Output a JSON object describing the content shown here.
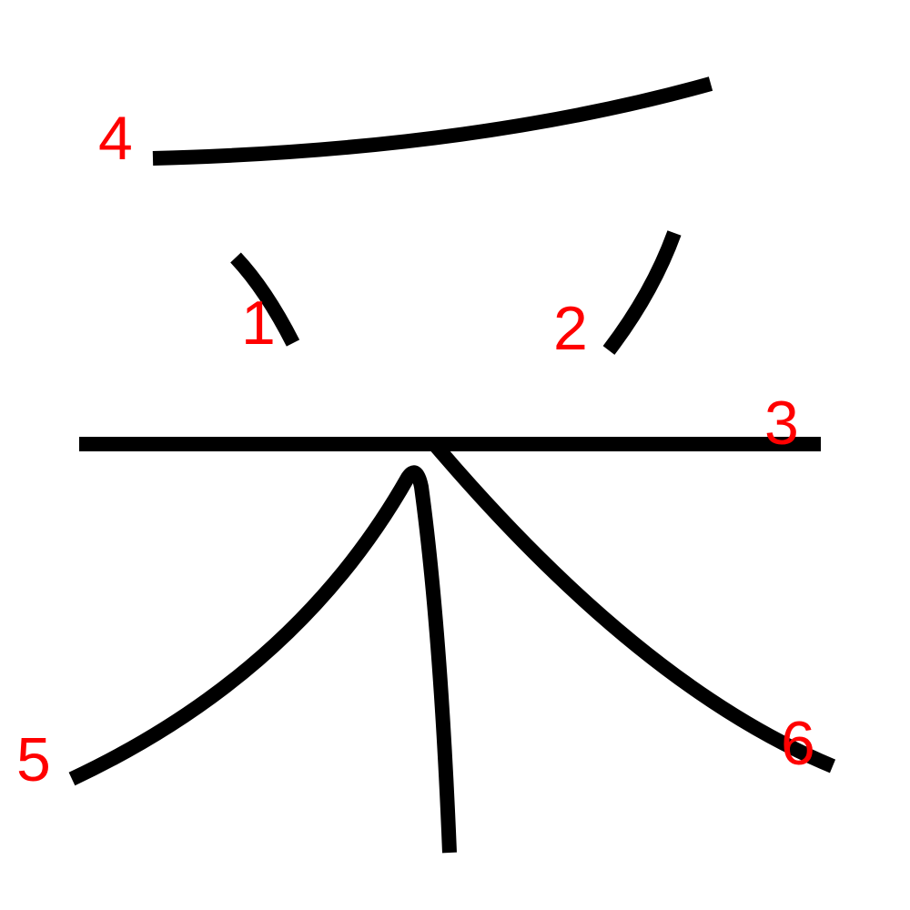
{
  "diagram": {
    "stroke_color": "#000000",
    "label_color": "#ff0000",
    "labels": [
      {
        "id": "1",
        "text": "1"
      },
      {
        "id": "2",
        "text": "2"
      },
      {
        "id": "3",
        "text": "3"
      },
      {
        "id": "4",
        "text": "4"
      },
      {
        "id": "5",
        "text": "5"
      },
      {
        "id": "6",
        "text": "6"
      }
    ]
  }
}
